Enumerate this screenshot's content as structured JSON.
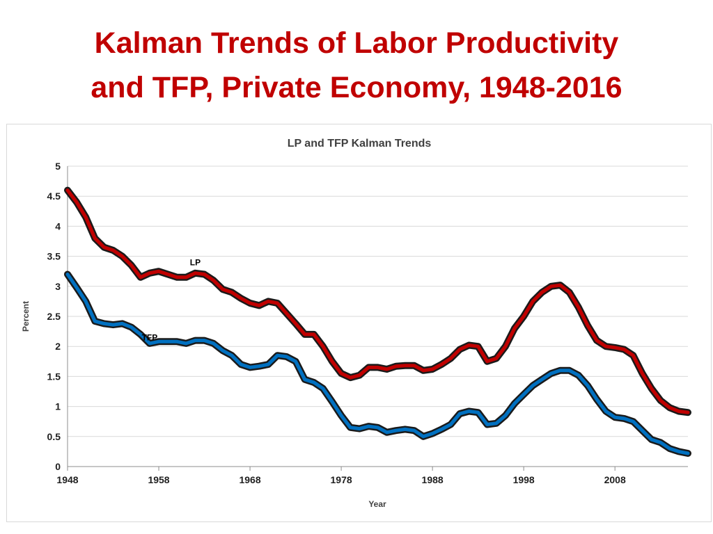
{
  "slide": {
    "title_line1": "Kalman Trends of Labor Productivity",
    "title_line2": "and TFP, Private Economy, 1948-2016",
    "title_color": "#c00000"
  },
  "chart_data": {
    "type": "line",
    "title": "LP and TFP Kalman Trends",
    "xlabel": "Year",
    "ylabel": "Percent",
    "xlim": [
      1948,
      2016
    ],
    "ylim": [
      0,
      5
    ],
    "x_ticks": [
      "1948",
      "1958",
      "1968",
      "1978",
      "1988",
      "1998",
      "2008"
    ],
    "y_ticks": [
      "0",
      "0.5",
      "1",
      "1.5",
      "2",
      "2.5",
      "3",
      "3.5",
      "4",
      "4.5",
      "5"
    ],
    "grid": true,
    "legend": "none",
    "series": [
      {
        "name": "LP",
        "color": "#c00000",
        "label_year": 1962,
        "label_value": 3.35,
        "points": [
          [
            1948,
            4.6
          ],
          [
            1949,
            4.4
          ],
          [
            1950,
            4.15
          ],
          [
            1951,
            3.8
          ],
          [
            1952,
            3.65
          ],
          [
            1953,
            3.6
          ],
          [
            1954,
            3.5
          ],
          [
            1955,
            3.35
          ],
          [
            1956,
            3.15
          ],
          [
            1957,
            3.22
          ],
          [
            1958,
            3.25
          ],
          [
            1959,
            3.2
          ],
          [
            1960,
            3.15
          ],
          [
            1961,
            3.15
          ],
          [
            1962,
            3.22
          ],
          [
            1963,
            3.2
          ],
          [
            1964,
            3.1
          ],
          [
            1965,
            2.95
          ],
          [
            1966,
            2.9
          ],
          [
            1967,
            2.8
          ],
          [
            1968,
            2.72
          ],
          [
            1969,
            2.68
          ],
          [
            1970,
            2.75
          ],
          [
            1971,
            2.72
          ],
          [
            1972,
            2.55
          ],
          [
            1973,
            2.38
          ],
          [
            1974,
            2.2
          ],
          [
            1975,
            2.2
          ],
          [
            1976,
            2.0
          ],
          [
            1977,
            1.75
          ],
          [
            1978,
            1.55
          ],
          [
            1979,
            1.48
          ],
          [
            1980,
            1.52
          ],
          [
            1981,
            1.65
          ],
          [
            1982,
            1.65
          ],
          [
            1983,
            1.62
          ],
          [
            1984,
            1.67
          ],
          [
            1985,
            1.68
          ],
          [
            1986,
            1.68
          ],
          [
            1987,
            1.6
          ],
          [
            1988,
            1.62
          ],
          [
            1989,
            1.7
          ],
          [
            1990,
            1.8
          ],
          [
            1991,
            1.95
          ],
          [
            1992,
            2.02
          ],
          [
            1993,
            2.0
          ],
          [
            1994,
            1.75
          ],
          [
            1995,
            1.8
          ],
          [
            1996,
            2.0
          ],
          [
            1997,
            2.3
          ],
          [
            1998,
            2.5
          ],
          [
            1999,
            2.75
          ],
          [
            2000,
            2.9
          ],
          [
            2001,
            3.0
          ],
          [
            2002,
            3.02
          ],
          [
            2003,
            2.9
          ],
          [
            2004,
            2.65
          ],
          [
            2005,
            2.35
          ],
          [
            2006,
            2.1
          ],
          [
            2007,
            2.0
          ],
          [
            2008,
            1.98
          ],
          [
            2009,
            1.95
          ],
          [
            2010,
            1.85
          ],
          [
            2011,
            1.55
          ],
          [
            2012,
            1.3
          ],
          [
            2013,
            1.1
          ],
          [
            2014,
            0.98
          ],
          [
            2015,
            0.92
          ],
          [
            2016,
            0.9
          ]
        ]
      },
      {
        "name": "TFP",
        "color": "#0070c0",
        "label_year": 1957,
        "label_value": 2.1,
        "points": [
          [
            1948,
            3.2
          ],
          [
            1949,
            2.98
          ],
          [
            1950,
            2.75
          ],
          [
            1951,
            2.42
          ],
          [
            1952,
            2.38
          ],
          [
            1953,
            2.36
          ],
          [
            1954,
            2.38
          ],
          [
            1955,
            2.32
          ],
          [
            1956,
            2.2
          ],
          [
            1957,
            2.05
          ],
          [
            1958,
            2.08
          ],
          [
            1959,
            2.08
          ],
          [
            1960,
            2.08
          ],
          [
            1961,
            2.05
          ],
          [
            1962,
            2.1
          ],
          [
            1963,
            2.1
          ],
          [
            1964,
            2.05
          ],
          [
            1965,
            1.93
          ],
          [
            1966,
            1.85
          ],
          [
            1967,
            1.7
          ],
          [
            1968,
            1.65
          ],
          [
            1969,
            1.67
          ],
          [
            1970,
            1.7
          ],
          [
            1971,
            1.85
          ],
          [
            1972,
            1.83
          ],
          [
            1973,
            1.75
          ],
          [
            1974,
            1.45
          ],
          [
            1975,
            1.4
          ],
          [
            1976,
            1.3
          ],
          [
            1977,
            1.08
          ],
          [
            1978,
            0.85
          ],
          [
            1979,
            0.65
          ],
          [
            1980,
            0.63
          ],
          [
            1981,
            0.67
          ],
          [
            1982,
            0.65
          ],
          [
            1983,
            0.57
          ],
          [
            1984,
            0.6
          ],
          [
            1985,
            0.62
          ],
          [
            1986,
            0.6
          ],
          [
            1987,
            0.5
          ],
          [
            1988,
            0.55
          ],
          [
            1989,
            0.62
          ],
          [
            1990,
            0.7
          ],
          [
            1991,
            0.88
          ],
          [
            1992,
            0.92
          ],
          [
            1993,
            0.9
          ],
          [
            1994,
            0.7
          ],
          [
            1995,
            0.72
          ],
          [
            1996,
            0.85
          ],
          [
            1997,
            1.05
          ],
          [
            1998,
            1.2
          ],
          [
            1999,
            1.35
          ],
          [
            2000,
            1.45
          ],
          [
            2001,
            1.55
          ],
          [
            2002,
            1.6
          ],
          [
            2003,
            1.6
          ],
          [
            2004,
            1.52
          ],
          [
            2005,
            1.35
          ],
          [
            2006,
            1.12
          ],
          [
            2007,
            0.92
          ],
          [
            2008,
            0.82
          ],
          [
            2009,
            0.8
          ],
          [
            2010,
            0.75
          ],
          [
            2011,
            0.6
          ],
          [
            2012,
            0.45
          ],
          [
            2013,
            0.4
          ],
          [
            2014,
            0.3
          ],
          [
            2015,
            0.25
          ],
          [
            2016,
            0.22
          ]
        ]
      }
    ]
  }
}
